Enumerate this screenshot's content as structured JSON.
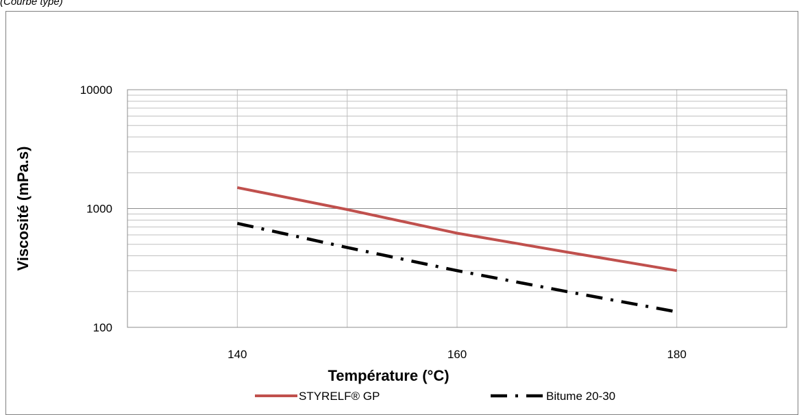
{
  "note": "(Courbe type)",
  "chart_data": {
    "type": "line",
    "title": "",
    "xlabel": "Température (°C)",
    "ylabel": "Viscosité (mPa.s)",
    "xlim": [
      130,
      190
    ],
    "ylim": [
      100,
      10000
    ],
    "yscale": "log",
    "x_ticks": [
      140,
      160,
      180
    ],
    "x_tick_labels": [
      "140",
      "160",
      "180"
    ],
    "y_ticks": [
      100,
      1000,
      10000
    ],
    "y_tick_labels": [
      "100",
      "1000",
      "10000"
    ],
    "grid": true,
    "legend_position": "bottom",
    "series": [
      {
        "name": "STYRELF® GP",
        "color": "#c0504d",
        "style": "solid",
        "x": [
          140,
          150,
          160,
          170,
          180
        ],
        "y": [
          1500,
          980,
          620,
          430,
          300
        ]
      },
      {
        "name": "Bitume 20-30",
        "color": "#000000",
        "style": "dash-dot",
        "x": [
          140,
          150,
          160,
          170,
          180
        ],
        "y": [
          750,
          470,
          300,
          200,
          135
        ]
      }
    ]
  }
}
